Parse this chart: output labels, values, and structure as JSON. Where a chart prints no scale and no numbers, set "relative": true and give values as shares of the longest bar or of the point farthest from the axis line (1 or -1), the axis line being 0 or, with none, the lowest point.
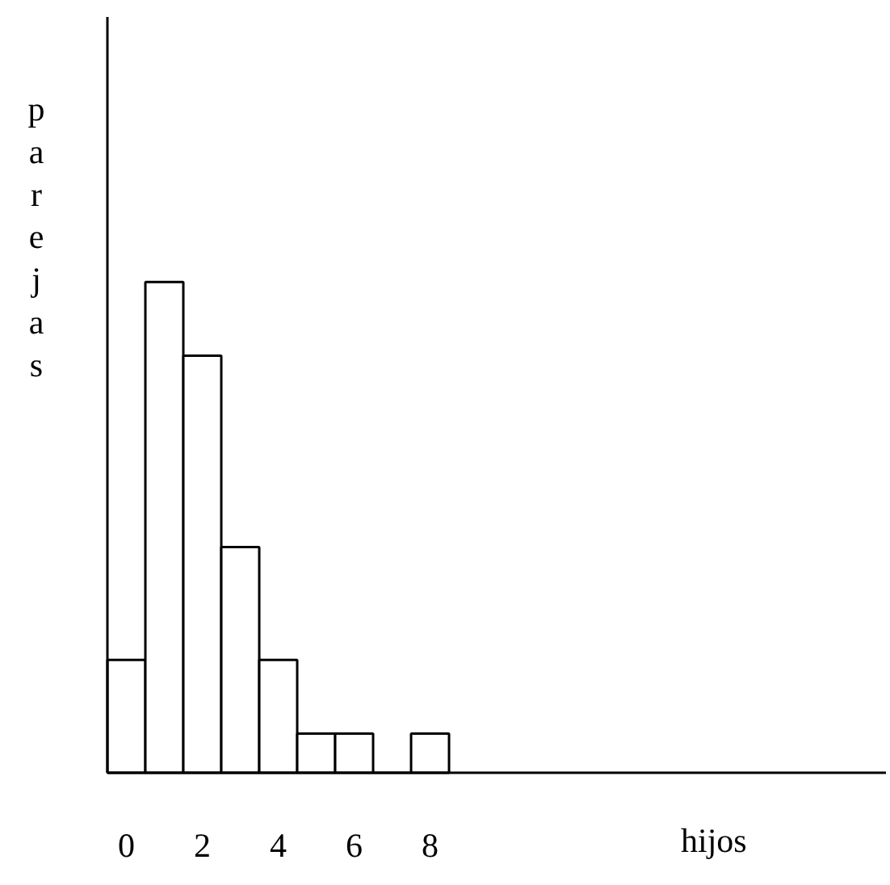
{
  "chart_data": {
    "type": "bar",
    "relative": true,
    "annotations": [
      "hijos"
    ],
    "ylabel": "parejas",
    "categories": [
      "0",
      null,
      "2",
      null,
      "4",
      null,
      "6",
      null,
      "8"
    ],
    "values": [
      0.23,
      1,
      0.85,
      0.46,
      0.23,
      0.08,
      0.08,
      0,
      0.08
    ],
    "color": "#ffffff",
    "grid": false
  }
}
